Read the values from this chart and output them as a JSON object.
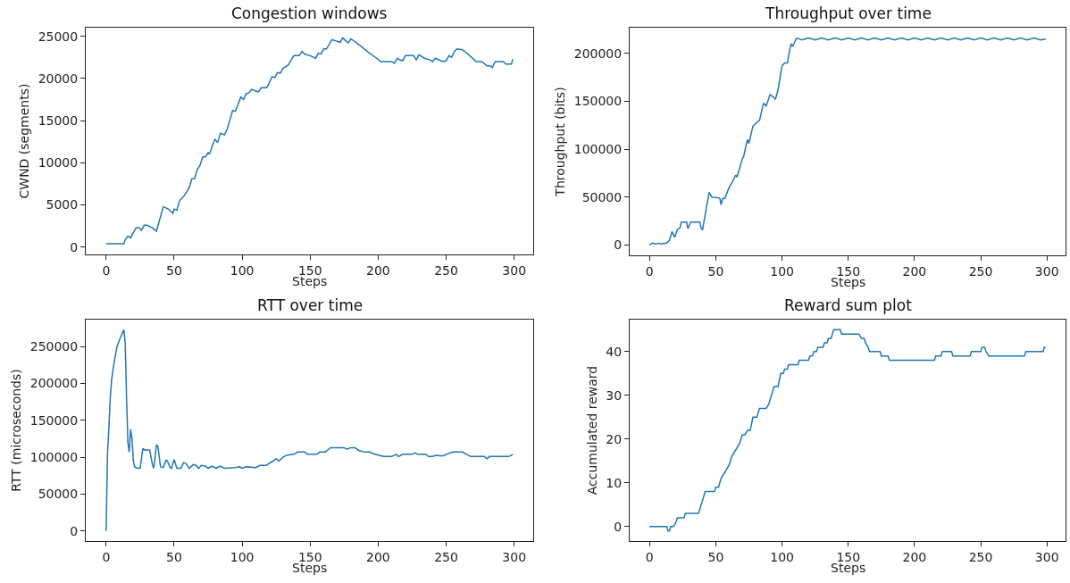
{
  "chart_data": [
    {
      "type": "line",
      "title": "Congestion windows",
      "xlabel": "Steps",
      "ylabel": "CWND (segments)",
      "xlim": [
        -15,
        314
      ],
      "xticks": [
        0,
        50,
        100,
        150,
        200,
        250,
        300
      ],
      "ylim": [
        -870,
        26020
      ],
      "yticks": [
        0,
        5000,
        10000,
        15000,
        20000,
        25000
      ],
      "series": [
        {
          "color": "#1f77b4",
          "x": [
            0,
            13,
            14,
            16,
            18,
            20,
            22,
            24,
            26,
            28,
            30,
            34,
            37,
            42,
            46,
            49,
            50,
            52,
            54,
            57,
            59,
            61,
            63,
            65,
            67,
            69,
            71,
            73,
            75,
            76,
            78,
            80,
            82,
            84,
            87,
            89,
            93,
            95,
            99,
            101,
            103,
            105,
            107,
            110,
            112,
            114,
            118,
            120,
            122,
            124,
            126,
            128,
            130,
            134,
            136,
            138,
            142,
            144,
            146,
            150,
            154,
            156,
            158,
            160,
            162,
            166,
            168,
            172,
            174,
            176,
            178,
            180,
            186,
            192,
            198,
            202,
            210,
            212,
            214,
            216,
            218,
            220,
            226,
            228,
            230,
            234,
            238,
            240,
            242,
            246,
            248,
            250,
            252,
            254,
            256,
            258,
            262,
            266,
            270,
            272,
            276,
            280,
            282,
            284,
            286,
            292,
            294,
            298,
            299
          ],
          "values": [
            400,
            400,
            900,
            1300,
            1100,
            1700,
            2300,
            2300,
            2000,
            2600,
            2600,
            2300,
            1900,
            4800,
            4500,
            4000,
            4500,
            4400,
            5500,
            6000,
            6500,
            7000,
            8100,
            8100,
            9200,
            9700,
            10700,
            10700,
            11200,
            11000,
            12000,
            12800,
            12400,
            13500,
            13300,
            14000,
            16200,
            16100,
            17800,
            17500,
            18200,
            18300,
            18700,
            18500,
            18400,
            18900,
            18900,
            19500,
            20200,
            20100,
            20700,
            20600,
            21200,
            21600,
            22200,
            22700,
            22700,
            23200,
            22900,
            22700,
            22400,
            23000,
            22900,
            23500,
            23500,
            24600,
            24500,
            24300,
            24800,
            24500,
            24200,
            24700,
            24000,
            23200,
            22500,
            22000,
            22000,
            21800,
            22400,
            22200,
            22100,
            22700,
            22700,
            22200,
            22800,
            22400,
            22200,
            22000,
            22400,
            22100,
            22000,
            22100,
            22700,
            22500,
            23200,
            23500,
            23400,
            22900,
            22300,
            22000,
            22000,
            21500,
            21500,
            21300,
            22000,
            22000,
            21700,
            21700,
            22300
          ]
        }
      ]
    },
    {
      "type": "line",
      "title": "Throughput over time",
      "xlabel": "Steps",
      "ylabel": "Throughput (bits)",
      "xlim": [
        -15,
        314
      ],
      "xticks": [
        0,
        50,
        100,
        150,
        200,
        250,
        300
      ],
      "ylim": [
        -10800,
        226800
      ],
      "yticks": [
        0,
        50000,
        100000,
        150000,
        200000
      ],
      "series": [
        {
          "color": "#1f77b4",
          "x": [
            0,
            2,
            5,
            7,
            9,
            13,
            15,
            17,
            19,
            21,
            23,
            24,
            28,
            29,
            31,
            38,
            39,
            40,
            45,
            47,
            53,
            54,
            55,
            57,
            60,
            63,
            65,
            66,
            68,
            70,
            71,
            73,
            74,
            75,
            76,
            78,
            81,
            83,
            86,
            88,
            91,
            93,
            95,
            97,
            100,
            102,
            104,
            106,
            107,
            108,
            110,
            111,
            115,
            120,
            125,
            130,
            135,
            140,
            145,
            150,
            155,
            160,
            165,
            170,
            175,
            180,
            185,
            190,
            195,
            200,
            205,
            210,
            215,
            220,
            225,
            230,
            235,
            240,
            245,
            250,
            255,
            260,
            265,
            270,
            275,
            280,
            285,
            290,
            295,
            299
          ],
          "values": [
            0,
            2000,
            1000,
            2000,
            1000,
            2000,
            5000,
            14000,
            8000,
            16000,
            18000,
            24000,
            24000,
            17000,
            24000,
            24000,
            17000,
            16000,
            55000,
            50000,
            49000,
            42000,
            48000,
            49000,
            60000,
            67000,
            73000,
            71000,
            80000,
            90000,
            92000,
            105000,
            110000,
            106000,
            112000,
            124000,
            128000,
            130000,
            148000,
            145000,
            157000,
            155000,
            152000,
            162000,
            187000,
            190000,
            190000,
            205000,
            210000,
            207000,
            213000,
            216000,
            214000,
            216000,
            214000,
            216000,
            214000,
            216000,
            214000,
            216000,
            214000,
            216000,
            214000,
            216000,
            214000,
            216000,
            214000,
            216000,
            214000,
            216000,
            214000,
            216000,
            214000,
            216000,
            214000,
            216000,
            214000,
            216000,
            214000,
            216000,
            214000,
            216000,
            214000,
            216000,
            214000,
            216000,
            214000,
            216000,
            214000,
            215000
          ]
        }
      ]
    },
    {
      "type": "line",
      "title": "RTT over time",
      "xlabel": "Steps",
      "ylabel": "RTT (microseconds)",
      "xlim": [
        -15,
        314
      ],
      "xticks": [
        0,
        50,
        100,
        150,
        200,
        250,
        300
      ],
      "ylim": [
        -13650,
        286650
      ],
      "yticks": [
        0,
        50000,
        100000,
        150000,
        200000,
        250000
      ],
      "series": [
        {
          "color": "#1f77b4",
          "x": [
            0,
            1,
            2,
            3,
            4,
            6,
            8,
            10,
            13,
            14,
            15,
            16,
            17,
            18,
            19,
            20,
            21,
            23,
            25,
            27,
            28,
            30,
            32,
            34,
            35,
            37,
            38,
            40,
            42,
            44,
            45,
            47,
            48,
            50,
            52,
            55,
            57,
            59,
            61,
            64,
            66,
            68,
            70,
            73,
            75,
            78,
            81,
            84,
            87,
            95,
            98,
            100,
            103,
            110,
            113,
            118,
            120,
            123,
            125,
            127,
            130,
            133,
            138,
            141,
            146,
            148,
            155,
            157,
            161,
            165,
            175,
            177,
            180,
            183,
            186,
            190,
            194,
            196,
            200,
            204,
            210,
            213,
            215,
            218,
            225,
            227,
            229,
            235,
            237,
            240,
            243,
            245,
            248,
            250,
            255,
            262,
            265,
            268,
            278,
            280,
            282,
            296,
            299
          ],
          "values": [
            0,
            105000,
            140000,
            180000,
            205000,
            230000,
            250000,
            260000,
            273000,
            255000,
            180000,
            120000,
            107000,
            138000,
            125000,
            95000,
            87000,
            85000,
            85000,
            112000,
            110000,
            110000,
            110000,
            90000,
            85000,
            117000,
            115000,
            87000,
            86000,
            96000,
            95000,
            86000,
            85000,
            97000,
            85000,
            85000,
            93000,
            91000,
            85000,
            90000,
            89000,
            85000,
            89000,
            88000,
            85000,
            88000,
            85000,
            88000,
            85000,
            86000,
            87000,
            85000,
            87000,
            86000,
            89000,
            89000,
            92000,
            95000,
            98000,
            95000,
            100000,
            103000,
            104000,
            107000,
            107000,
            104000,
            104000,
            107000,
            107000,
            113000,
            113000,
            111000,
            113000,
            113000,
            109000,
            107000,
            107000,
            105000,
            103000,
            101000,
            101000,
            104000,
            101000,
            104000,
            104000,
            106000,
            104000,
            104000,
            101000,
            101000,
            103000,
            102000,
            102000,
            104000,
            107000,
            107000,
            104000,
            101000,
            101000,
            98000,
            101000,
            101000,
            104000
          ]
        }
      ]
    },
    {
      "type": "line",
      "title": "Reward sum plot",
      "xlabel": "Steps",
      "ylabel": "Accumulated reward",
      "xlim": [
        -15,
        314
      ],
      "xticks": [
        0,
        50,
        100,
        150,
        200,
        250,
        300
      ],
      "ylim": [
        -3.3,
        47.3
      ],
      "yticks": [
        0,
        10,
        20,
        30,
        40
      ],
      "series": [
        {
          "color": "#1f77b4",
          "x": [
            0,
            13,
            14,
            15,
            16,
            18,
            20,
            21,
            26,
            27,
            37,
            42,
            49,
            50,
            52,
            54,
            56,
            58,
            60,
            62,
            64,
            66,
            68,
            70,
            72,
            74,
            76,
            78,
            81,
            83,
            88,
            90,
            93,
            94,
            97,
            99,
            101,
            102,
            104,
            105,
            112,
            113,
            120,
            121,
            123,
            124,
            126,
            127,
            131,
            132,
            134,
            135,
            137,
            138,
            139,
            144,
            145,
            158,
            160,
            162,
            163,
            165,
            166,
            174,
            175,
            180,
            181,
            215,
            216,
            220,
            221,
            228,
            229,
            242,
            243,
            250,
            251,
            253,
            254,
            256,
            283,
            284,
            297,
            298,
            299
          ],
          "values": [
            0,
            0,
            -1,
            -1,
            0,
            0,
            1,
            2,
            2,
            3,
            3,
            8,
            8,
            9,
            9,
            11,
            12,
            13,
            14,
            16,
            17,
            18,
            19,
            21,
            21,
            22,
            22,
            25,
            25,
            27,
            27,
            28,
            31,
            32,
            32,
            35,
            35,
            36,
            36,
            37,
            37,
            38,
            38,
            39,
            39,
            40,
            40,
            41,
            41,
            42,
            42,
            43,
            43,
            44,
            45,
            45,
            44,
            44,
            43,
            43,
            42,
            41,
            40,
            40,
            39,
            39,
            38,
            38,
            39,
            39,
            40,
            40,
            39,
            39,
            40,
            40,
            41,
            41,
            40,
            39,
            39,
            40,
            40,
            41,
            41
          ]
        }
      ]
    }
  ]
}
